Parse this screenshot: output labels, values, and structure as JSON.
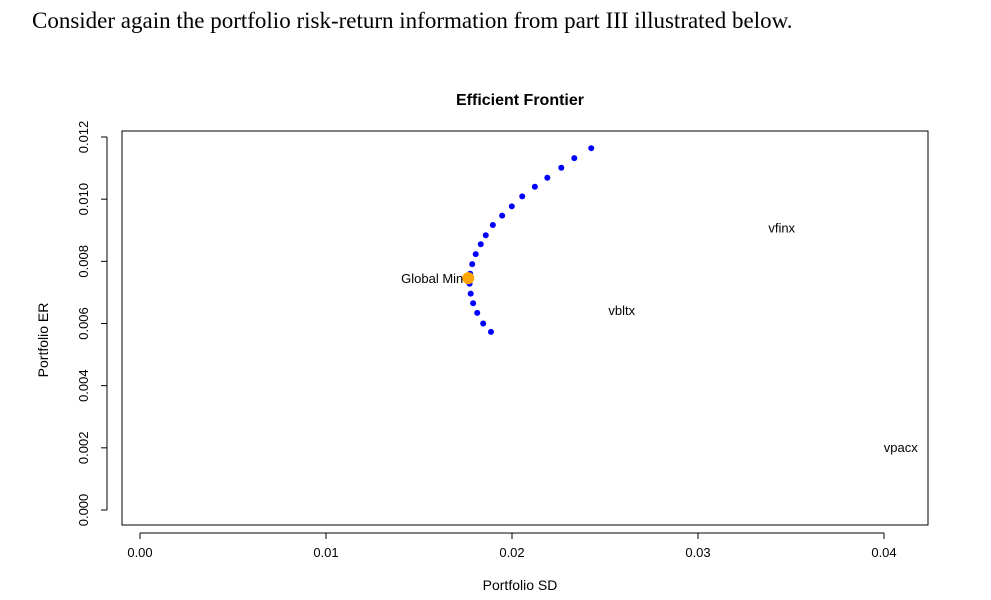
{
  "question_text": "Consider again the portfolio risk-return information from part III illustrated below.",
  "chart_data": {
    "type": "scatter",
    "title": "Efficient Frontier",
    "xlabel": "Portfolio SD",
    "ylabel": "Portfolio ER",
    "xlim": [
      0.0,
      0.04
    ],
    "ylim": [
      0.0,
      0.012
    ],
    "x_ticks": [
      "0.00",
      "0.01",
      "0.02",
      "0.03",
      "0.04"
    ],
    "y_ticks": [
      "0.000",
      "0.002",
      "0.004",
      "0.006",
      "0.008",
      "0.010",
      "0.012"
    ],
    "grid": false,
    "frontier_color": "#0000ff",
    "gmv_color": "#ffa500",
    "frontier_points": [
      {
        "x": 0.01887,
        "y": 0.00573
      },
      {
        "x": 0.01845,
        "y": 0.006
      },
      {
        "x": 0.01813,
        "y": 0.00634
      },
      {
        "x": 0.01791,
        "y": 0.00665
      },
      {
        "x": 0.01778,
        "y": 0.00696
      },
      {
        "x": 0.01772,
        "y": 0.00728
      },
      {
        "x": 0.01775,
        "y": 0.0076
      },
      {
        "x": 0.01786,
        "y": 0.00791
      },
      {
        "x": 0.01805,
        "y": 0.00823
      },
      {
        "x": 0.01832,
        "y": 0.00855
      },
      {
        "x": 0.01859,
        "y": 0.00884
      },
      {
        "x": 0.01897,
        "y": 0.00917
      },
      {
        "x": 0.01947,
        "y": 0.00947
      },
      {
        "x": 0.01999,
        "y": 0.00977
      },
      {
        "x": 0.02055,
        "y": 0.01009
      },
      {
        "x": 0.02123,
        "y": 0.0104
      },
      {
        "x": 0.0219,
        "y": 0.01069
      },
      {
        "x": 0.02265,
        "y": 0.01101
      },
      {
        "x": 0.02335,
        "y": 0.01132
      },
      {
        "x": 0.02426,
        "y": 0.01164
      }
    ],
    "global_min": {
      "label": "Global Min",
      "x": 0.01765,
      "y": 0.00746
    },
    "assets": [
      {
        "name": "vfinx",
        "x": 0.0345,
        "y": 0.00905
      },
      {
        "name": "vbltx",
        "x": 0.0259,
        "y": 0.0064
      },
      {
        "name": "vpacx",
        "x": 0.0409,
        "y": 0.002
      }
    ]
  }
}
